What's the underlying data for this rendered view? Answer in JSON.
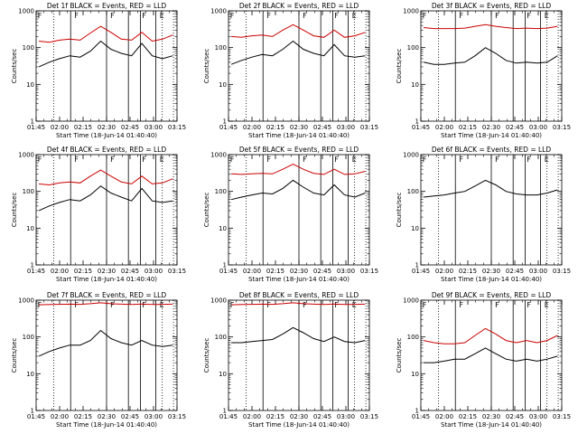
{
  "chart_data": [
    {
      "type": "line",
      "title": "Det 1f BLACK = Events, RED = LLD",
      "xlabel": "Start Time (18-Jun-14 01:40:40)",
      "ylabel": "Counts/sec",
      "x_ticks": [
        "01:45",
        "02:00",
        "02:15",
        "02:30",
        "02:45",
        "03:00",
        "03:15"
      ],
      "y_ticks": [
        "1",
        "10",
        "100",
        "1000"
      ],
      "ylim": [
        1,
        1000
      ],
      "y_scale": "log",
      "series": [
        {
          "color": "#000000",
          "values": [
            30,
            40,
            50,
            60,
            55,
            80,
            150,
            90,
            70,
            60,
            130,
            60,
            50,
            60
          ]
        },
        {
          "color": "#cc0000",
          "values": [
            150,
            140,
            160,
            170,
            160,
            250,
            380,
            260,
            170,
            160,
            260,
            150,
            170,
            220
          ]
        }
      ]
    },
    {
      "type": "line",
      "title": "Det 2f BLACK = Events, RED = LLD",
      "xlabel": "Start Time (18-Jun-14 01:40:40)",
      "ylabel": "Counts/sec",
      "x_ticks": [
        "01:45",
        "02:00",
        "02:15",
        "02:30",
        "02:45",
        "03:00",
        "03:15"
      ],
      "y_ticks": [
        "1",
        "10",
        "100",
        "1000"
      ],
      "ylim": [
        1,
        1000
      ],
      "y_scale": "log",
      "series": [
        {
          "color": "#000000",
          "values": [
            35,
            45,
            55,
            65,
            60,
            90,
            150,
            90,
            70,
            60,
            120,
            60,
            55,
            60
          ]
        },
        {
          "color": "#cc0000",
          "values": [
            200,
            190,
            210,
            220,
            200,
            300,
            420,
            300,
            210,
            190,
            300,
            190,
            210,
            260
          ]
        }
      ]
    },
    {
      "type": "line",
      "title": "Det 3f BLACK = Events, RED = LLD",
      "xlabel": "Start Time (18-Jun-14 01:40:40)",
      "ylabel": "Counts/sec",
      "x_ticks": [
        "01:45",
        "02:00",
        "02:15",
        "02:30",
        "02:45",
        "03:00",
        "03:15"
      ],
      "y_ticks": [
        "1",
        "10",
        "100",
        "1000"
      ],
      "ylim": [
        1,
        1000
      ],
      "y_scale": "log",
      "series": [
        {
          "color": "#000000",
          "values": [
            40,
            35,
            35,
            38,
            40,
            60,
            100,
            70,
            45,
            38,
            40,
            38,
            40,
            60
          ]
        },
        {
          "color": "#cc0000",
          "values": [
            350,
            330,
            330,
            330,
            340,
            380,
            420,
            380,
            350,
            330,
            340,
            330,
            340,
            380
          ]
        }
      ]
    },
    {
      "type": "line",
      "title": "Det 4f BLACK = Events, RED = LLD",
      "xlabel": "Start Time (18-Jun-14 01:40:40)",
      "ylabel": "Counts/sec",
      "x_ticks": [
        "01:45",
        "02:00",
        "02:15",
        "02:30",
        "02:45",
        "03:00",
        "03:15"
      ],
      "y_ticks": [
        "1",
        "10",
        "100",
        "1000"
      ],
      "ylim": [
        1,
        1000
      ],
      "y_scale": "log",
      "series": [
        {
          "color": "#000000",
          "values": [
            30,
            40,
            50,
            60,
            55,
            80,
            140,
            90,
            70,
            55,
            120,
            55,
            50,
            55
          ]
        },
        {
          "color": "#cc0000",
          "values": [
            160,
            150,
            170,
            180,
            170,
            260,
            380,
            260,
            180,
            160,
            260,
            160,
            170,
            220
          ]
        }
      ]
    },
    {
      "type": "line",
      "title": "Det 5f BLACK = Events, RED = LLD",
      "xlabel": "Start Time (18-Jun-14 01:40:40)",
      "ylabel": "Counts/sec",
      "x_ticks": [
        "01:45",
        "02:00",
        "02:15",
        "02:30",
        "02:45",
        "03:00",
        "03:15"
      ],
      "y_ticks": [
        "1",
        "10",
        "100",
        "1000"
      ],
      "ylim": [
        1,
        1000
      ],
      "y_scale": "log",
      "series": [
        {
          "color": "#000000",
          "values": [
            60,
            70,
            80,
            90,
            85,
            120,
            200,
            130,
            90,
            80,
            150,
            80,
            70,
            90
          ]
        },
        {
          "color": "#cc0000",
          "values": [
            300,
            290,
            300,
            310,
            300,
            400,
            550,
            400,
            310,
            290,
            400,
            290,
            300,
            350
          ]
        }
      ]
    },
    {
      "type": "line",
      "title": "Det 6f BLACK = Events, RED = LLD",
      "xlabel": "Start Time (18-Jun-14 01:40:40)",
      "ylabel": "Counts/sec",
      "x_ticks": [
        "01:45",
        "02:00",
        "02:15",
        "02:30",
        "02:45",
        "03:00",
        "03:15"
      ],
      "y_ticks": [
        "1",
        "10",
        "100",
        "1000"
      ],
      "ylim": [
        1,
        1000
      ],
      "y_scale": "log",
      "series": [
        {
          "color": "#000000",
          "values": [
            70,
            75,
            80,
            90,
            100,
            140,
            200,
            150,
            100,
            85,
            80,
            80,
            90,
            110
          ]
        }
      ]
    },
    {
      "type": "line",
      "title": "Det 7f BLACK = Events, RED = LLD",
      "xlabel": "Start Time (18-Jun-14 01:40:40)",
      "ylabel": "Counts/sec",
      "x_ticks": [
        "01:45",
        "02:00",
        "02:15",
        "02:30",
        "02:45",
        "03:00",
        "03:15"
      ],
      "y_ticks": [
        "1",
        "10",
        "100",
        "1000"
      ],
      "ylim": [
        1,
        1000
      ],
      "y_scale": "log",
      "series": [
        {
          "color": "#000000",
          "values": [
            30,
            40,
            50,
            60,
            60,
            80,
            150,
            90,
            70,
            60,
            80,
            60,
            55,
            60
          ]
        },
        {
          "color": "#cc0000",
          "values": [
            750,
            760,
            770,
            780,
            770,
            800,
            850,
            800,
            780,
            760,
            790,
            760,
            770,
            780
          ]
        }
      ]
    },
    {
      "type": "line",
      "title": "Det 8f BLACK = Events, RED = LLD",
      "xlabel": "Start Time (18-Jun-14 01:40:40)",
      "ylabel": "Counts/sec",
      "x_ticks": [
        "01:45",
        "02:00",
        "02:15",
        "02:30",
        "02:45",
        "03:00",
        "03:15"
      ],
      "y_ticks": [
        "1",
        "10",
        "100",
        "1000"
      ],
      "ylim": [
        1,
        1000
      ],
      "y_scale": "log",
      "series": [
        {
          "color": "#000000",
          "values": [
            70,
            70,
            75,
            80,
            85,
            120,
            180,
            130,
            90,
            75,
            100,
            75,
            70,
            80
          ]
        },
        {
          "color": "#cc0000",
          "values": [
            750,
            760,
            770,
            780,
            770,
            800,
            850,
            800,
            780,
            760,
            790,
            760,
            770,
            780
          ]
        }
      ]
    },
    {
      "type": "line",
      "title": "Det 9f BLACK = Events, RED = LLD",
      "xlabel": "Start Time (18-Jun-14 01:40:40)",
      "ylabel": "Counts/sec",
      "x_ticks": [
        "01:45",
        "02:00",
        "02:15",
        "02:30",
        "02:45",
        "03:00",
        "03:15"
      ],
      "y_ticks": [
        "1",
        "10",
        "100",
        "1000"
      ],
      "ylim": [
        1,
        1000
      ],
      "y_scale": "log",
      "series": [
        {
          "color": "#000000",
          "values": [
            20,
            20,
            22,
            25,
            25,
            35,
            50,
            35,
            25,
            22,
            25,
            22,
            25,
            30
          ]
        },
        {
          "color": "#cc0000",
          "values": [
            80,
            70,
            65,
            65,
            70,
            110,
            170,
            120,
            80,
            70,
            80,
            70,
            80,
            110
          ]
        }
      ]
    }
  ]
}
